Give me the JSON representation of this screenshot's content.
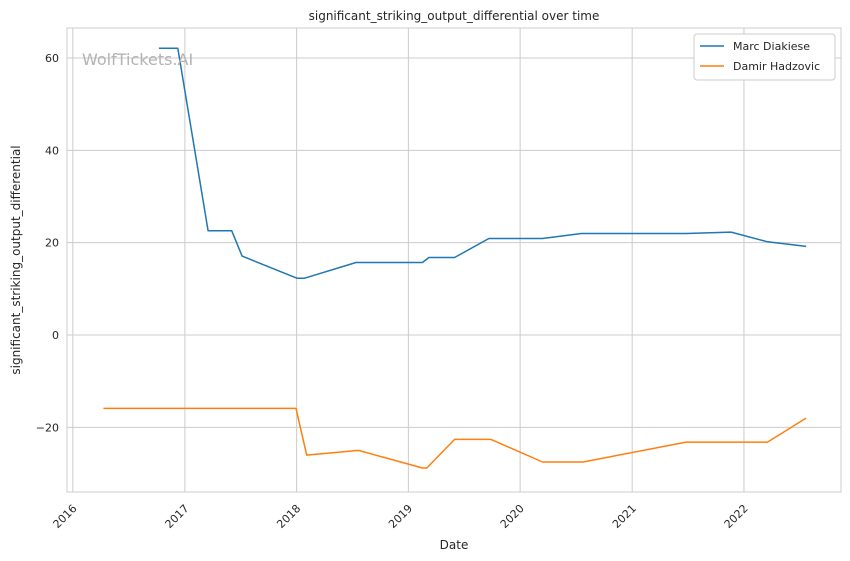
{
  "chart_data": {
    "type": "line",
    "title": "significant_striking_output_differential over time",
    "xlabel": "Date",
    "ylabel": "significant_striking_output_differential",
    "watermark": "WolfTickets.AI",
    "x_ticks": [
      "2016",
      "2017",
      "2018",
      "2019",
      "2020",
      "2021",
      "2022"
    ],
    "y_ticks": [
      -20,
      0,
      20,
      40,
      60
    ],
    "xlim": [
      "2015-12-13",
      "2022-11-14"
    ],
    "ylim": [
      -34,
      66.5
    ],
    "grid": true,
    "legend_position": "top-right",
    "series": [
      {
        "name": "Marc Diakiese",
        "color": "#1f77b4",
        "points": [
          [
            "2016-10-08",
            62.1
          ],
          [
            "2016-12-09",
            62.1
          ],
          [
            "2017-03-18",
            22.6
          ],
          [
            "2017-06-03",
            22.6
          ],
          [
            "2017-07-07",
            17.1
          ],
          [
            "2018-01-02",
            12.3
          ],
          [
            "2018-01-27",
            12.3
          ],
          [
            "2018-07-14",
            15.7
          ],
          [
            "2019-02-16",
            15.7
          ],
          [
            "2019-03-09",
            16.8
          ],
          [
            "2019-06-01",
            16.8
          ],
          [
            "2019-09-21",
            20.9
          ],
          [
            "2020-03-14",
            20.9
          ],
          [
            "2020-07-19",
            22.0
          ],
          [
            "2021-06-26",
            22.0
          ],
          [
            "2021-11-20",
            22.3
          ],
          [
            "2022-03-19",
            20.2
          ],
          [
            "2022-07-23",
            19.2
          ]
        ]
      },
      {
        "name": "Damir Hadzovic",
        "color": "#ff7f0e",
        "points": [
          [
            "2016-04-10",
            -15.9
          ],
          [
            "2017-12-30",
            -15.9
          ],
          [
            "2018-02-03",
            -26.0
          ],
          [
            "2018-07-22",
            -25.0
          ],
          [
            "2019-02-16",
            -28.8
          ],
          [
            "2019-03-02",
            -28.8
          ],
          [
            "2019-06-01",
            -22.6
          ],
          [
            "2019-09-28",
            -22.6
          ],
          [
            "2020-03-14",
            -27.5
          ],
          [
            "2020-07-25",
            -27.5
          ],
          [
            "2021-06-26",
            -23.2
          ],
          [
            "2022-03-19",
            -23.2
          ],
          [
            "2022-07-23",
            -18.0
          ]
        ]
      }
    ]
  }
}
